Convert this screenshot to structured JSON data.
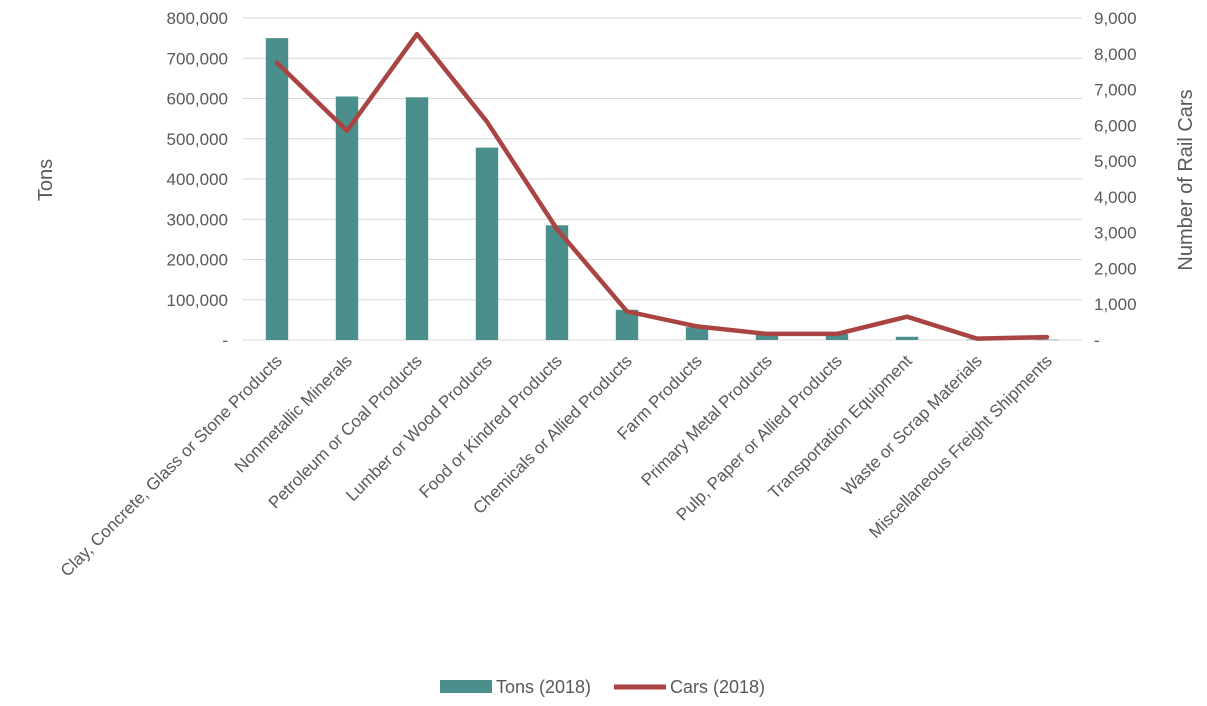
{
  "chart_data": {
    "type": "bar",
    "categories": [
      "Clay, Concrete, Glass or Stone Products",
      "Nonmetallic Minerals",
      "Petroleum or Coal Products",
      "Lumber or Wood Products",
      "Food or Kindred Products",
      "Chemicals or Allied Products",
      "Farm Products",
      "Primary Metal Products",
      "Pulp, Paper or Allied Products",
      "Transportation Equipment",
      "Waste or Scrap Materials",
      "Miscellaneous Freight Shipments"
    ],
    "series": [
      {
        "name": "Tons (2018)",
        "type": "bar",
        "axis": "left",
        "color": "#4a8f8c",
        "values": [
          750000,
          605000,
          603000,
          478000,
          285000,
          75000,
          32000,
          16000,
          15000,
          8000,
          1000,
          1000
        ]
      },
      {
        "name": "Cars (2018)",
        "type": "line",
        "axis": "right",
        "color": "#a94442",
        "values": [
          7750,
          5850,
          8550,
          6100,
          3100,
          800,
          380,
          170,
          170,
          650,
          40,
          80
        ]
      }
    ],
    "ylabel": "Tons",
    "y2label": "Number of Rail Cars",
    "ylim": [
      0,
      800000
    ],
    "y2lim": [
      0,
      9000
    ],
    "yticks": [
      "-",
      "100,000",
      "200,000",
      "300,000",
      "400,000",
      "500,000",
      "600,000",
      "700,000",
      "800,000"
    ],
    "y2ticks": [
      "-",
      "1,000",
      "2,000",
      "3,000",
      "4,000",
      "5,000",
      "6,000",
      "7,000",
      "8,000",
      "9,000"
    ],
    "grid": true,
    "legend": "bottom"
  }
}
